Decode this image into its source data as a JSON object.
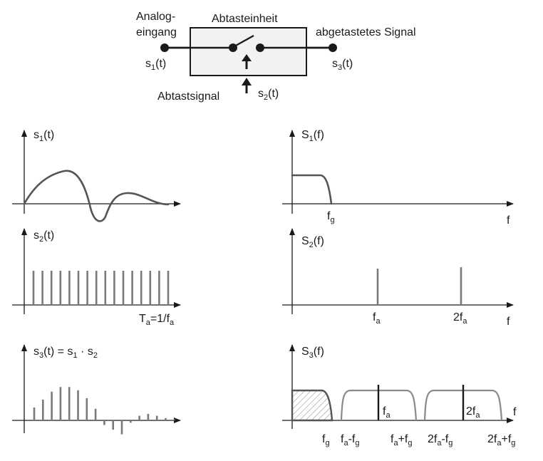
{
  "block": {
    "input_line1": "Analog-",
    "input_line2": "eingang",
    "unit": "Abtasteinheit",
    "output": "abgetastetes Signal",
    "sampling": "Abtastsignal",
    "s1_base": "s",
    "s1_sub": "1",
    "s1_tail": "(t)",
    "s2_base": "s",
    "s2_sub": "2",
    "s2_tail": "(t)",
    "s3_base": "s",
    "s3_sub": "3",
    "s3_tail": "(t)"
  },
  "plots": {
    "s1": {
      "base": "s",
      "sub": "1",
      "tail": "(t)"
    },
    "s2": {
      "base": "s",
      "sub": "2",
      "tail": "(t)",
      "period_base": "T",
      "period_sub": "a",
      "period_mid": "=1/f",
      "period_sub2": "a"
    },
    "s3": {
      "title_a": "s",
      "sub_a": "3",
      "title_b": "(t) = s",
      "sub_b": "1",
      "title_c": " · s",
      "sub_c": "2"
    },
    "S1": {
      "base": "S",
      "sub": "1",
      "tail": "(f)",
      "fg_base": "f",
      "fg_sub": "g",
      "faxis": "f"
    },
    "S2": {
      "base": "S",
      "sub": "2",
      "tail": "(f)",
      "fa_base": "f",
      "fa_sub": "a",
      "f2a_base": "2f",
      "f2a_sub": "a",
      "faxis": "f"
    },
    "S3": {
      "base": "S",
      "sub": "3",
      "tail": "(f)",
      "faxis": "f",
      "in_fa_base": "f",
      "in_fa_sub": "a",
      "in_2fa_base": "2f",
      "in_2fa_sub": "a",
      "t1_base": "f",
      "t1_sub": "g",
      "t2_a": "f",
      "t2_asub": "a",
      "t2_b": "-f",
      "t2_bsub": "g",
      "t3_a": "f",
      "t3_asub": "a",
      "t3_b": "+f",
      "t3_bsub": "g",
      "t4_a": "2f",
      "t4_asub": "a",
      "t4_b": "-f",
      "t4_bsub": "g",
      "t5_a": "2f",
      "t5_asub": "a",
      "t5_b": "+f",
      "t5_bsub": "g"
    }
  },
  "samples": {
    "s2_count": 16,
    "s3_values": [
      0.28,
      0.45,
      0.62,
      0.72,
      0.72,
      0.65,
      0.48,
      0.25,
      -0.1,
      -0.2,
      -0.3,
      -0.05,
      0.1,
      0.14,
      0.1,
      0.05,
      0.02
    ]
  }
}
